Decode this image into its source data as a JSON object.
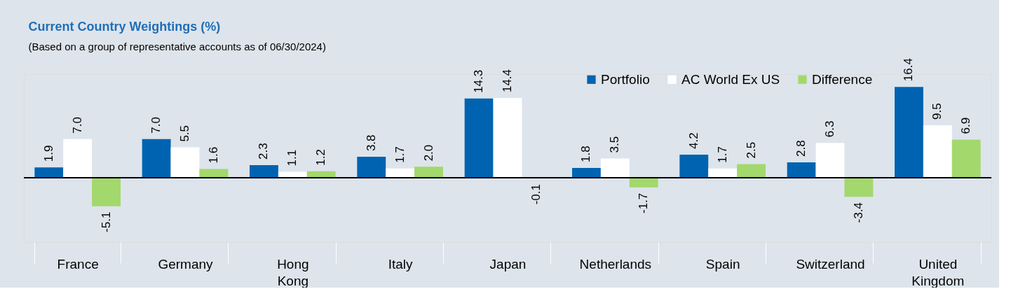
{
  "chart_data": {
    "type": "bar",
    "title": "Current Country Weightings (%)",
    "subtitle": "(Based on a group of representative accounts as of 06/30/2024)",
    "categories": [
      "France",
      "Germany",
      "Hong Kong",
      "Italy",
      "Japan",
      "Netherlands",
      "Spain",
      "Switzerland",
      "United Kingdom"
    ],
    "series": [
      {
        "name": "Portfolio",
        "color": "#0063b1",
        "values": [
          1.9,
          7.0,
          2.3,
          3.8,
          14.3,
          1.8,
          4.2,
          2.8,
          16.4
        ],
        "value_labels": [
          "1.9",
          "7.0",
          "2.3",
          "3.8",
          "14.3",
          "1.8",
          "4.2",
          "2.8",
          "16.4"
        ]
      },
      {
        "name": "AC World Ex US",
        "color": "#ffffff",
        "values": [
          7.0,
          5.5,
          1.1,
          1.7,
          14.4,
          3.5,
          1.7,
          6.3,
          9.5
        ],
        "value_labels": [
          "7.0",
          "5.5",
          "1.1",
          "1.7",
          "14.4",
          "3.5",
          "1.7",
          "6.3",
          "9.5"
        ]
      },
      {
        "name": "Difference",
        "color": "#a3d86c",
        "values": [
          -5.1,
          1.6,
          1.2,
          2.0,
          -0.1,
          -1.7,
          2.5,
          -3.4,
          6.9
        ],
        "value_labels": [
          "-5.1",
          "1.6",
          "1.2",
          "2.0",
          "-0.1",
          "-1.7",
          "2.5",
          "-3.4",
          "6.9"
        ]
      }
    ],
    "legend": "top right",
    "grid": false
  }
}
